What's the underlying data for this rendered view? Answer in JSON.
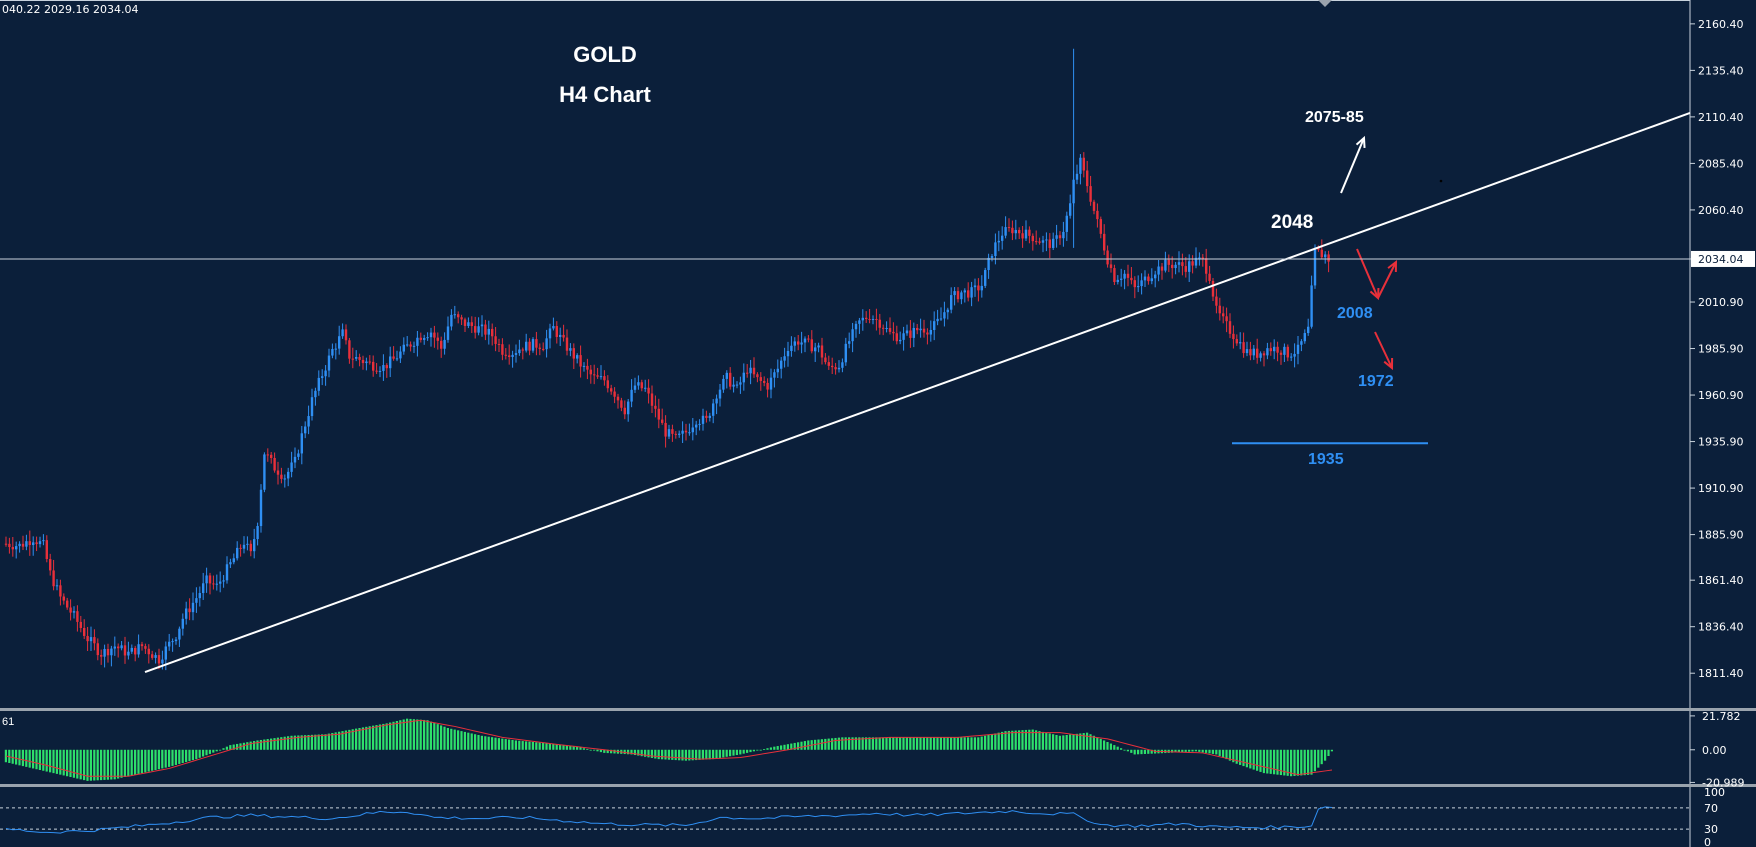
{
  "header": {
    "ohlc_text": "040.22 2029.16 2034.04"
  },
  "colors": {
    "background": "#0b1f3a",
    "bull": "#2f8ff3",
    "bear": "#e8303a",
    "hist": "#2ee06b",
    "grid_line": "#c8d2dc"
  },
  "chart_data": {
    "type": "candlestick",
    "title": "GOLD",
    "subtitle": "H4 Chart",
    "current_price": 2034.04,
    "current_price_label": "2034.04",
    "price_axis": {
      "ylim": [
        1797,
        2170
      ],
      "ticks": [
        "2160.40",
        "2135.40",
        "2110.40",
        "2085.40",
        "2060.40",
        "2034.04",
        "2010.90",
        "1985.90",
        "1960.90",
        "1935.90",
        "1910.90",
        "1885.90",
        "1861.40",
        "1836.40",
        "1811.40"
      ]
    },
    "annotations": {
      "target_up": "2075-85",
      "resistance": "2048",
      "support1": "2008",
      "support2": "1972",
      "support3": "1935"
    },
    "price_path": [
      [
        0,
        1881
      ],
      [
        4,
        1880
      ],
      [
        8,
        1884
      ],
      [
        11,
        1880
      ],
      [
        13,
        1865
      ],
      [
        16,
        1852
      ],
      [
        20,
        1842
      ],
      [
        24,
        1830
      ],
      [
        28,
        1822
      ],
      [
        32,
        1826
      ],
      [
        36,
        1822
      ],
      [
        40,
        1826
      ],
      [
        45,
        1819
      ],
      [
        48,
        1827
      ],
      [
        50,
        1832
      ],
      [
        52,
        1841
      ],
      [
        56,
        1852
      ],
      [
        59,
        1861
      ],
      [
        62,
        1858
      ],
      [
        66,
        1870
      ],
      [
        70,
        1882
      ],
      [
        72,
        1875
      ],
      [
        74,
        1893
      ],
      [
        76,
        1930
      ],
      [
        79,
        1922
      ],
      [
        82,
        1917
      ],
      [
        85,
        1925
      ],
      [
        87,
        1939
      ],
      [
        90,
        1958
      ],
      [
        93,
        1972
      ],
      [
        96,
        1985
      ],
      [
        99,
        1994
      ],
      [
        101,
        1982
      ],
      [
        104,
        1980
      ],
      [
        108,
        1977
      ],
      [
        111,
        1976
      ],
      [
        114,
        1980
      ],
      [
        118,
        1987
      ],
      [
        122,
        1993
      ],
      [
        125,
        1995
      ],
      [
        128,
        1986
      ],
      [
        131,
        2004
      ],
      [
        134,
        2000
      ],
      [
        137,
        1998
      ],
      [
        140,
        1996
      ],
      [
        143,
        1993
      ],
      [
        146,
        1985
      ],
      [
        149,
        1984
      ],
      [
        152,
        1987
      ],
      [
        155,
        1988
      ],
      [
        158,
        1988
      ],
      [
        161,
        1997
      ],
      [
        164,
        1989
      ],
      [
        167,
        1982
      ],
      [
        170,
        1975
      ],
      [
        173,
        1970
      ],
      [
        176,
        1969
      ],
      [
        179,
        1962
      ],
      [
        182,
        1953
      ],
      [
        185,
        1966
      ],
      [
        188,
        1964
      ],
      [
        191,
        1952
      ],
      [
        194,
        1941
      ],
      [
        197,
        1937
      ],
      [
        200,
        1941
      ],
      [
        203,
        1948
      ],
      [
        206,
        1947
      ],
      [
        209,
        1962
      ],
      [
        212,
        1970
      ],
      [
        215,
        1964
      ],
      [
        218,
        1975
      ],
      [
        221,
        1969
      ],
      [
        224,
        1966
      ],
      [
        227,
        1975
      ],
      [
        230,
        1987
      ],
      [
        233,
        1990
      ],
      [
        236,
        1988
      ],
      [
        239,
        1986
      ],
      [
        242,
        1975
      ],
      [
        245,
        1977
      ],
      [
        248,
        1990
      ],
      [
        251,
        2000
      ],
      [
        254,
        2004
      ],
      [
        257,
        2000
      ],
      [
        260,
        1994
      ],
      [
        263,
        1992
      ],
      [
        266,
        1994
      ],
      [
        269,
        1997
      ],
      [
        272,
        1996
      ],
      [
        275,
        2002
      ],
      [
        278,
        2013
      ],
      [
        281,
        2016
      ],
      [
        284,
        2016
      ],
      [
        287,
        2020
      ],
      [
        290,
        2038
      ],
      [
        293,
        2048
      ],
      [
        296,
        2050
      ],
      [
        299,
        2048
      ],
      [
        302,
        2046
      ],
      [
        305,
        2043
      ],
      [
        308,
        2042
      ],
      [
        311,
        2050
      ],
      [
        313,
        2063
      ],
      [
        314,
        2075
      ],
      [
        316,
        2086
      ],
      [
        318,
        2074
      ],
      [
        320,
        2060
      ],
      [
        322,
        2047
      ],
      [
        324,
        2034
      ],
      [
        326,
        2024
      ],
      [
        329,
        2026
      ],
      [
        332,
        2018
      ],
      [
        335,
        2023
      ],
      [
        338,
        2028
      ],
      [
        341,
        2031
      ],
      [
        344,
        2031
      ],
      [
        347,
        2030
      ],
      [
        350,
        2033
      ],
      [
        352,
        2033
      ],
      [
        354,
        2025
      ],
      [
        356,
        2006
      ],
      [
        359,
        1998
      ],
      [
        362,
        1991
      ],
      [
        365,
        1984
      ],
      [
        368,
        1983
      ],
      [
        371,
        1986
      ],
      [
        374,
        1986
      ],
      [
        377,
        1983
      ],
      [
        380,
        1985
      ],
      [
        383,
        1996
      ],
      [
        385,
        2038
      ],
      [
        388,
        2036
      ],
      [
        389,
        2034
      ]
    ],
    "macd": {
      "label": "61",
      "axis_ticks": [
        "21.782",
        "0.00",
        "-20.989"
      ],
      "hist_path": [
        [
          0,
          -8
        ],
        [
          8,
          -12
        ],
        [
          16,
          -16
        ],
        [
          24,
          -20
        ],
        [
          32,
          -19
        ],
        [
          40,
          -15
        ],
        [
          48,
          -11
        ],
        [
          56,
          -6
        ],
        [
          62,
          -1
        ],
        [
          66,
          3
        ],
        [
          74,
          6
        ],
        [
          84,
          9
        ],
        [
          94,
          10
        ],
        [
          104,
          14
        ],
        [
          112,
          17
        ],
        [
          118,
          20
        ],
        [
          124,
          19
        ],
        [
          130,
          14
        ],
        [
          140,
          9
        ],
        [
          150,
          6
        ],
        [
          160,
          4
        ],
        [
          168,
          2
        ],
        [
          176,
          -2
        ],
        [
          184,
          -3
        ],
        [
          192,
          -6
        ],
        [
          200,
          -7
        ],
        [
          208,
          -6
        ],
        [
          216,
          -3
        ],
        [
          226,
          2
        ],
        [
          236,
          6
        ],
        [
          246,
          8
        ],
        [
          256,
          8
        ],
        [
          266,
          8
        ],
        [
          276,
          8
        ],
        [
          286,
          8
        ],
        [
          294,
          12
        ],
        [
          302,
          13
        ],
        [
          310,
          9
        ],
        [
          318,
          11
        ],
        [
          324,
          5
        ],
        [
          332,
          -3
        ],
        [
          342,
          -2
        ],
        [
          350,
          -1
        ],
        [
          356,
          -3
        ],
        [
          362,
          -9
        ],
        [
          370,
          -15
        ],
        [
          378,
          -17
        ],
        [
          384,
          -16
        ],
        [
          388,
          -7
        ],
        [
          390,
          -1
        ]
      ],
      "signal_path": [
        [
          0,
          -4
        ],
        [
          12,
          -10
        ],
        [
          24,
          -17
        ],
        [
          36,
          -17
        ],
        [
          48,
          -12
        ],
        [
          60,
          -4
        ],
        [
          72,
          4
        ],
        [
          86,
          8
        ],
        [
          98,
          10
        ],
        [
          112,
          16
        ],
        [
          122,
          19
        ],
        [
          132,
          15
        ],
        [
          146,
          8
        ],
        [
          160,
          4
        ],
        [
          176,
          0
        ],
        [
          190,
          -4
        ],
        [
          204,
          -6
        ],
        [
          216,
          -5
        ],
        [
          230,
          0
        ],
        [
          244,
          6
        ],
        [
          260,
          8
        ],
        [
          280,
          8
        ],
        [
          296,
          11
        ],
        [
          310,
          11
        ],
        [
          324,
          7
        ],
        [
          338,
          -1
        ],
        [
          352,
          -2
        ],
        [
          366,
          -9
        ],
        [
          380,
          -16
        ],
        [
          390,
          -13
        ]
      ]
    },
    "rsi": {
      "axis_ticks": [
        "100",
        "70",
        "30",
        "0"
      ],
      "levels": [
        70,
        30
      ],
      "path": [
        [
          0,
          30
        ],
        [
          12,
          24
        ],
        [
          24,
          27
        ],
        [
          36,
          34
        ],
        [
          48,
          42
        ],
        [
          60,
          52
        ],
        [
          72,
          56
        ],
        [
          80,
          54
        ],
        [
          96,
          50
        ],
        [
          110,
          62
        ],
        [
          118,
          63
        ],
        [
          126,
          52
        ],
        [
          140,
          50
        ],
        [
          152,
          52
        ],
        [
          164,
          46
        ],
        [
          176,
          40
        ],
        [
          188,
          38
        ],
        [
          200,
          37
        ],
        [
          210,
          52
        ],
        [
          222,
          50
        ],
        [
          234,
          54
        ],
        [
          246,
          56
        ],
        [
          256,
          60
        ],
        [
          266,
          56
        ],
        [
          276,
          58
        ],
        [
          288,
          62
        ],
        [
          296,
          64
        ],
        [
          304,
          60
        ],
        [
          314,
          58
        ],
        [
          322,
          38
        ],
        [
          332,
          36
        ],
        [
          346,
          40
        ],
        [
          356,
          34
        ],
        [
          366,
          33
        ],
        [
          376,
          34
        ],
        [
          384,
          36
        ],
        [
          386,
          70
        ],
        [
          390,
          72
        ]
      ]
    }
  }
}
